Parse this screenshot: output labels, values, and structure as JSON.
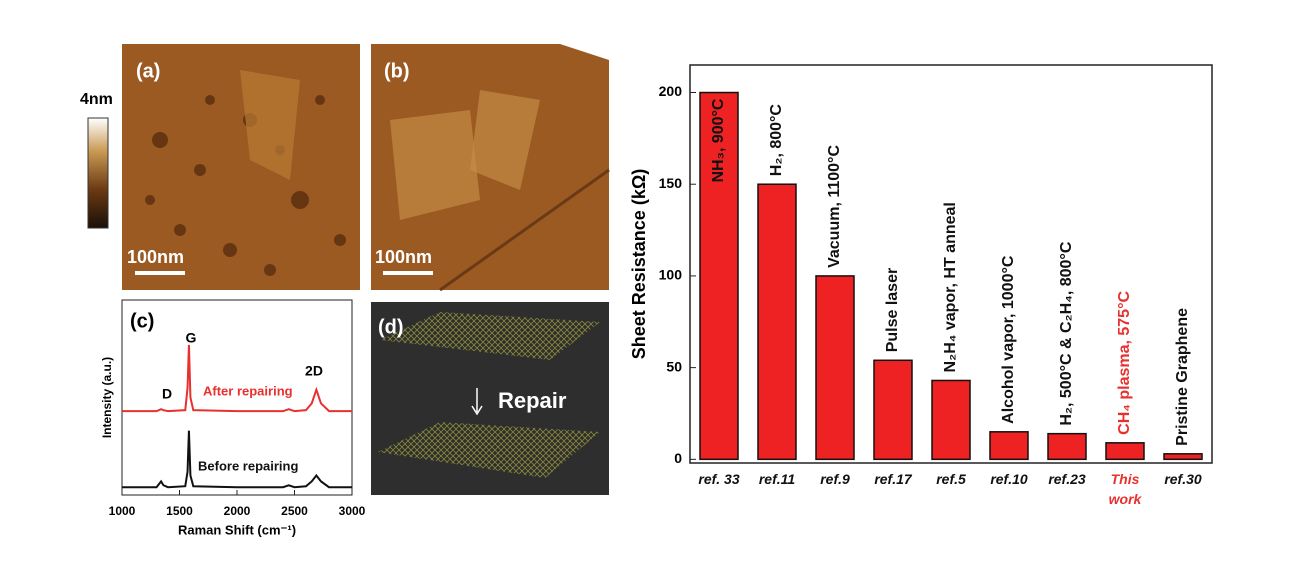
{
  "figure": {
    "panel_a": "(a)",
    "panel_b": "(b)",
    "panel_c": "(c)",
    "panel_d": "(d)",
    "colorbar_label": "4nm",
    "scale_a": "100nm",
    "scale_b": "100nm",
    "repair_label": "Repair"
  },
  "chart_data": [
    {
      "type": "bar",
      "y_label": "Sheet Resistance (kΩ)",
      "categories": [
        "ref. 33",
        "ref.11",
        "ref.9",
        "ref.17",
        "ref.5",
        "ref.10",
        "ref.23",
        "This\nwork",
        "ref.30"
      ],
      "values": [
        200,
        150,
        100,
        54,
        43,
        15,
        14,
        9,
        3
      ],
      "bar_labels": [
        "NH₃, 900°C",
        "H₂, 800°C",
        "Vacuum, 1100°C",
        "Pulse laser",
        "N₂H₄ vapor, HT anneal",
        "Alcohol vapor, 1000°C",
        "H₂, 500°C & C₂H₄, 800°C",
        "CH₄ plasma, 575°C",
        "Pristine Graphene"
      ],
      "label_colors": [
        "#111111",
        "#111111",
        "#111111",
        "#111111",
        "#111111",
        "#111111",
        "#111111",
        "#e8312f",
        "#111111"
      ],
      "color": "#ee2222",
      "ylim": [
        -2,
        215
      ],
      "yticks": [
        0,
        50,
        100,
        150,
        200
      ]
    },
    {
      "type": "line",
      "x_label": "Raman Shift (cm⁻¹)",
      "y_label": "Intensity (a.u.)",
      "x": [
        1000,
        1300,
        1340,
        1360,
        1400,
        1550,
        1570,
        1582,
        1595,
        1620,
        2000,
        2400,
        2450,
        2500,
        2600,
        2650,
        2690,
        2730,
        2800,
        3000
      ],
      "series": [
        {
          "name": "After repairing",
          "color": "#e8312f",
          "values": [
            4.3,
            4.3,
            4.4,
            4.35,
            4.3,
            4.35,
            5.5,
            7.7,
            5.0,
            4.35,
            4.3,
            4.3,
            4.4,
            4.3,
            4.35,
            4.7,
            5.4,
            4.7,
            4.3,
            4.3
          ]
        },
        {
          "name": "Before repairing",
          "color": "#111111",
          "values": [
            0.4,
            0.4,
            0.7,
            0.5,
            0.4,
            0.45,
            1.2,
            3.3,
            1.0,
            0.45,
            0.4,
            0.4,
            0.5,
            0.4,
            0.45,
            0.7,
            1.0,
            0.7,
            0.4,
            0.4
          ]
        }
      ],
      "peak_labels": [
        "D",
        "G",
        "2D"
      ],
      "xlim": [
        1000,
        3000
      ],
      "ylim": [
        0,
        10
      ],
      "xticks": [
        1000,
        1500,
        2000,
        2500,
        3000
      ]
    }
  ]
}
